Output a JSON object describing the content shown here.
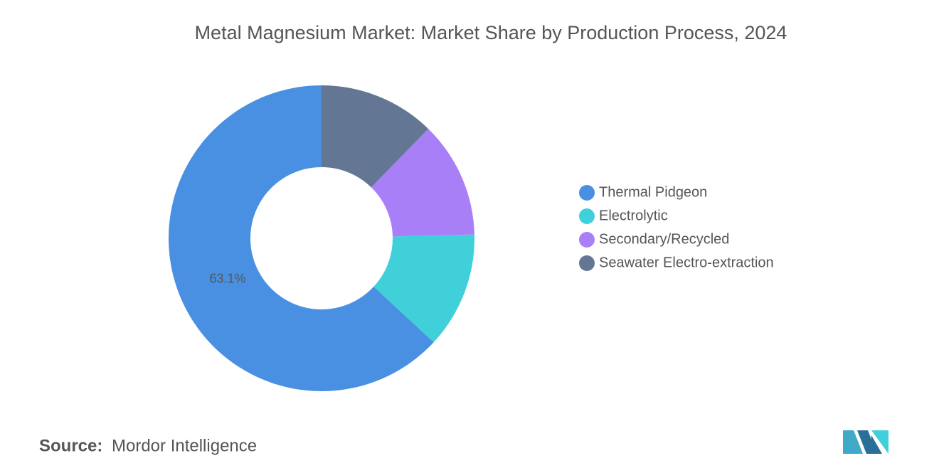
{
  "chart_data": {
    "type": "donut",
    "title": "Metal Magnesium Market: Market Share by Production Process, 2024",
    "categories": [
      "Thermal Pidgeon",
      "Electrolytic",
      "Secondary/Recycled",
      "Seawater Electro-extraction"
    ],
    "values": [
      63.1,
      12.3,
      12.3,
      12.3
    ],
    "value_labels": [
      "63.1%",
      null,
      null,
      null
    ],
    "colors": [
      "#4a90e2",
      "#3fd0d9",
      "#a97ff7",
      "#637794"
    ],
    "legend": "right"
  },
  "footer": {
    "source_label": "Source:",
    "source": "Mordor Intelligence"
  }
}
